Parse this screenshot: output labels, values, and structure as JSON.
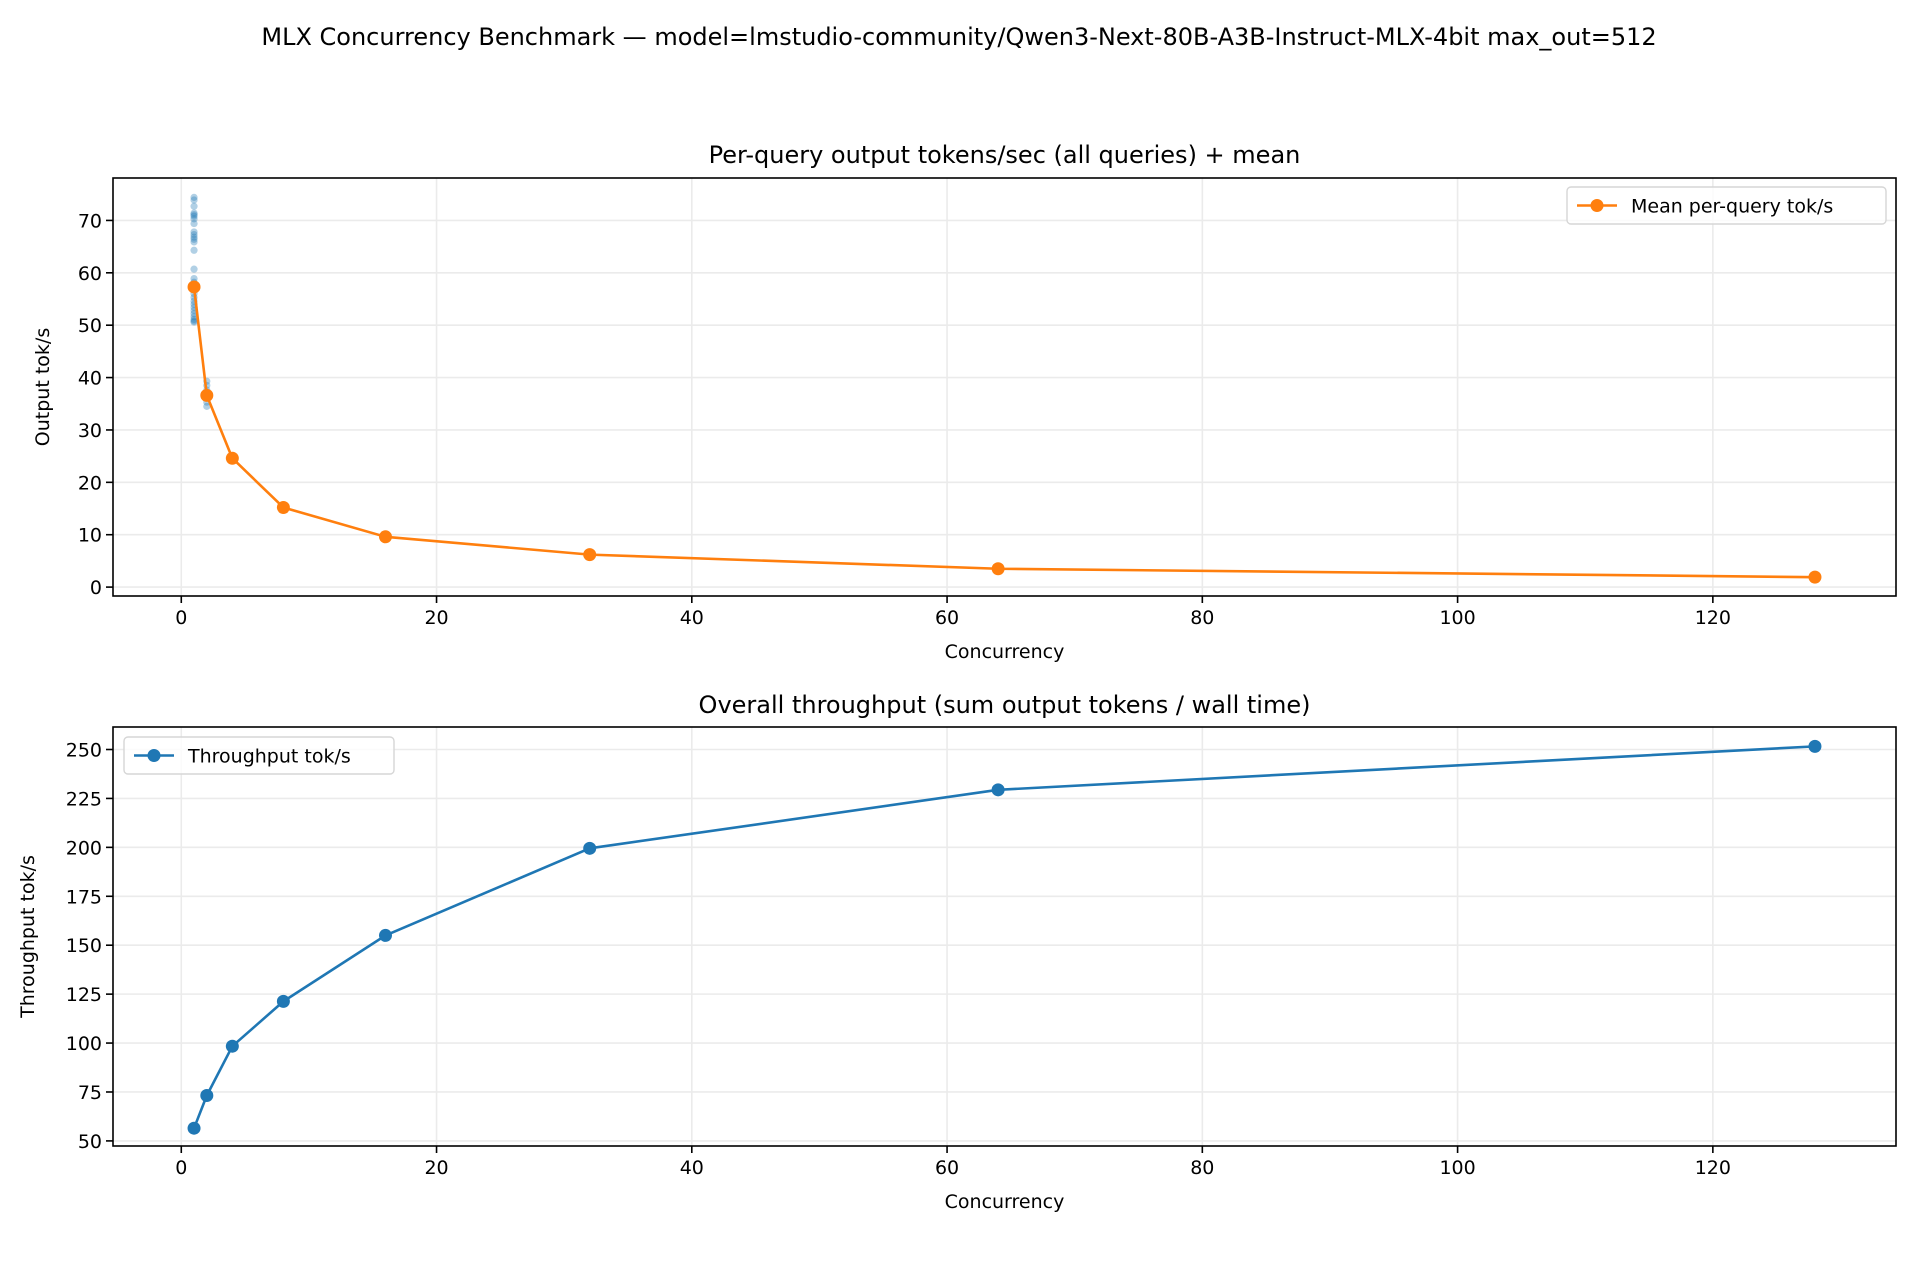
{
  "suptitle": "MLX Concurrency Benchmark — model=lmstudio-community/Qwen3-Next-80B-A3B-Instruct-MLX-4bit max_out=512",
  "colors": {
    "blue": "#1f77b4",
    "orange": "#ff7f0e",
    "grid": "#b0b0b0"
  },
  "chart_data": [
    {
      "type": "line",
      "title": "Per-query output tokens/sec (all queries) + mean",
      "xlabel": "Concurrency",
      "ylabel": "Output tok/s",
      "xlim": [
        -5.35,
        134.35
      ],
      "ylim": [
        -1.7,
        78.1
      ],
      "xticks": [
        0,
        20,
        40,
        60,
        80,
        100,
        120
      ],
      "yticks": [
        0,
        10,
        20,
        30,
        40,
        50,
        60,
        70
      ],
      "grid": true,
      "legend_position": "top-right",
      "scatter": {
        "x": [
          1,
          1,
          1,
          1,
          1,
          1,
          1,
          1,
          1,
          1,
          1,
          1,
          1,
          1,
          1,
          1,
          1,
          1,
          1,
          1,
          1,
          1,
          1,
          1,
          1,
          1,
          1,
          1,
          2,
          2,
          2,
          2,
          2,
          2
        ],
        "y": [
          74.4,
          73.9,
          72.7,
          71.4,
          71.1,
          70.8,
          70.3,
          69.4,
          67.8,
          67.3,
          66.8,
          66.4,
          65.9,
          64.3,
          60.7,
          58.9,
          58.2,
          56.0,
          55.3,
          54.6,
          54.0,
          53.4,
          52.8,
          52.2,
          51.6,
          51.1,
          50.8,
          50.6,
          39.3,
          38.5,
          37.6,
          36.2,
          35.3,
          34.5
        ]
      },
      "series": [
        {
          "name": "Mean per-query tok/s",
          "x": [
            1,
            2,
            4,
            8,
            16,
            32,
            64,
            128
          ],
          "y": [
            57.3,
            36.6,
            24.6,
            15.2,
            9.6,
            6.2,
            3.5,
            1.9
          ],
          "color": "#ff7f0e"
        }
      ]
    },
    {
      "type": "line",
      "title": "Overall throughput (sum output tokens / wall time)",
      "xlabel": "Concurrency",
      "ylabel": "Throughput tok/s",
      "xlim": [
        -5.35,
        134.35
      ],
      "ylim": [
        47.4,
        261.5
      ],
      "xticks": [
        0,
        20,
        40,
        60,
        80,
        100,
        120
      ],
      "yticks": [
        50,
        75,
        100,
        125,
        150,
        175,
        200,
        225,
        250
      ],
      "grid": true,
      "legend_position": "top-left",
      "series": [
        {
          "name": "Throughput tok/s",
          "x": [
            1,
            2,
            4,
            8,
            16,
            32,
            64,
            128
          ],
          "y": [
            56.5,
            73.2,
            98.4,
            121.3,
            155.0,
            199.5,
            229.4,
            251.6
          ],
          "color": "#1f77b4"
        }
      ]
    }
  ]
}
